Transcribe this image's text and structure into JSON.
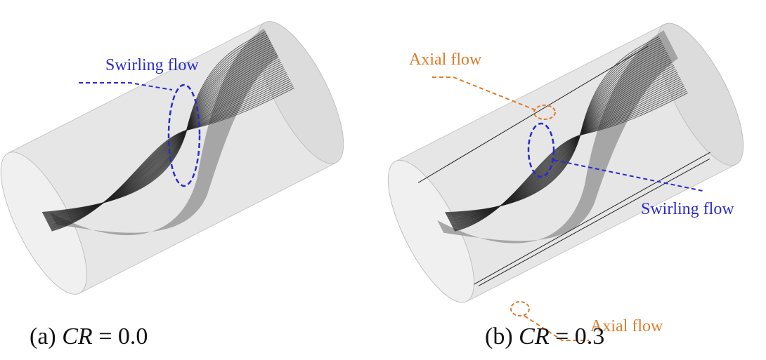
{
  "panels": [
    {
      "annotations": [
        {
          "label": "Swirling flow"
        }
      ],
      "caption": {
        "prefix": "(a)",
        "symbol": "CR",
        "value": "= 0.0"
      }
    },
    {
      "annotations": [
        {
          "label": "Axial flow"
        },
        {
          "label": "Swirling flow"
        },
        {
          "label": "Axial flow"
        }
      ],
      "caption": {
        "prefix": "(b)",
        "symbol": "CR",
        "value": "= 0.3"
      }
    }
  ]
}
